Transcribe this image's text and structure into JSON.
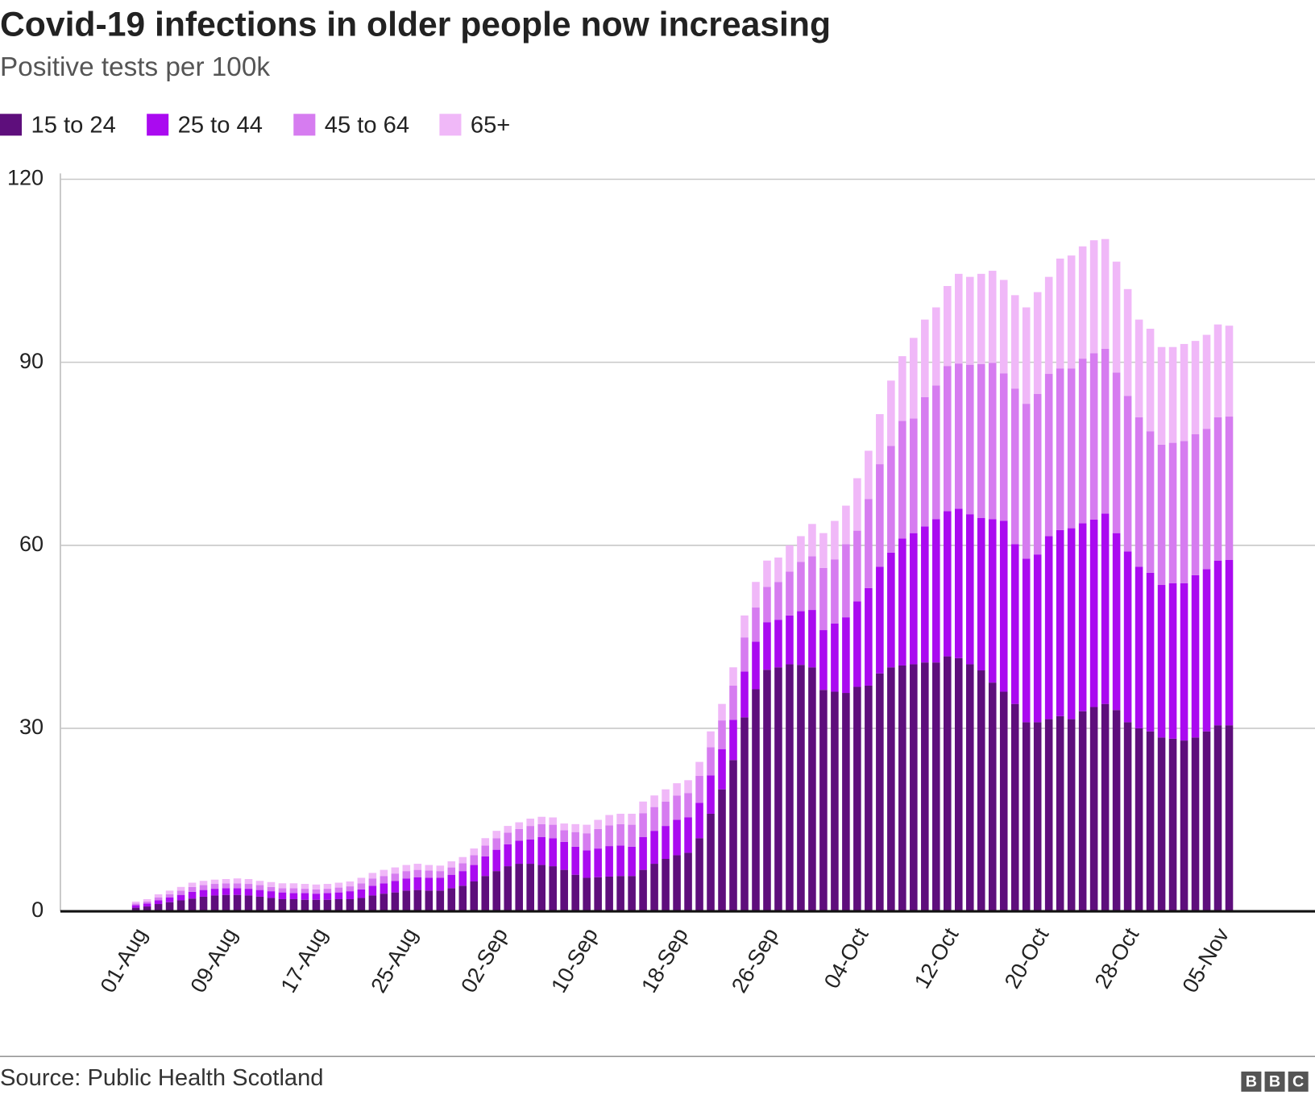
{
  "chart_data": {
    "type": "stacked-bar",
    "title": "Covid-19 infections in older people now increasing",
    "subtitle": "Positive tests per 100k",
    "source": "Source: Public Health Scotland",
    "logo": "BBC",
    "categories": [
      "01-Aug",
      null,
      null,
      null,
      null,
      null,
      null,
      null,
      "09-Aug",
      null,
      null,
      null,
      null,
      null,
      null,
      null,
      "17-Aug",
      null,
      null,
      null,
      null,
      null,
      null,
      null,
      "25-Aug",
      null,
      null,
      null,
      null,
      null,
      null,
      null,
      "02-Sep",
      null,
      null,
      null,
      null,
      null,
      null,
      null,
      "10-Sep",
      null,
      null,
      null,
      null,
      null,
      null,
      null,
      "18-Sep",
      null,
      null,
      null,
      null,
      null,
      null,
      null,
      "26-Sep",
      null,
      null,
      null,
      null,
      null,
      null,
      null,
      "04-Oct",
      null,
      null,
      null,
      null,
      null,
      null,
      null,
      "12-Oct",
      null,
      null,
      null,
      null,
      null,
      null,
      null,
      "20-Oct",
      null,
      null,
      null,
      null,
      null,
      null,
      null,
      "28-Oct",
      null,
      null,
      null,
      null,
      null,
      null,
      null,
      "05-Nov",
      null
    ],
    "series": [
      {
        "name": "15 to 24",
        "color": "#5e0e7c",
        "values": [
          0.6,
          0.8,
          1.2,
          1.5,
          1.8,
          2.1,
          2.4,
          2.6,
          2.7,
          2.7,
          2.6,
          2.4,
          2.2,
          2.0,
          2.0,
          1.9,
          1.9,
          1.9,
          2.0,
          2.0,
          2.2,
          2.6,
          2.9,
          3.1,
          3.4,
          3.5,
          3.4,
          3.4,
          3.8,
          4.2,
          4.9,
          5.8,
          6.6,
          7.4,
          7.8,
          7.8,
          7.6,
          7.4,
          6.8,
          6.0,
          5.5,
          5.6,
          5.7,
          5.8,
          5.8,
          6.8,
          7.8,
          8.6,
          9.2,
          9.6,
          12.0,
          16.0,
          20.0,
          24.8,
          31.8,
          36.4,
          39.6,
          40.0,
          40.5,
          40.4,
          40.0,
          36.3,
          36.0,
          35.8,
          36.8,
          37.0,
          39.0,
          40.0,
          40.3,
          40.5,
          40.8,
          40.8,
          41.8,
          41.5,
          40.5,
          39.5,
          37.5,
          36.0,
          34.0,
          31.0,
          31.0,
          31.5,
          32.0,
          31.5,
          32.8,
          33.5,
          34.0,
          33.0,
          31.0,
          30.0,
          29.5,
          28.5,
          28.3,
          28.0,
          28.5,
          29.5,
          30.5,
          30.5
        ]
      },
      {
        "name": "25 to 44",
        "color": "#aa0af0",
        "values": [
          0.4,
          0.5,
          0.6,
          0.8,
          0.9,
          1.1,
          1.1,
          1.1,
          1.1,
          1.1,
          1.1,
          1.1,
          1.1,
          1.1,
          1.0,
          1.1,
          1.0,
          1.1,
          1.1,
          1.3,
          1.4,
          1.6,
          1.7,
          1.9,
          2.0,
          2.1,
          2.1,
          2.1,
          2.2,
          2.4,
          2.7,
          3.2,
          3.5,
          3.6,
          3.8,
          4.0,
          4.6,
          4.6,
          4.6,
          4.6,
          4.5,
          4.7,
          5.0,
          5.0,
          4.8,
          5.4,
          5.4,
          5.4,
          5.8,
          5.8,
          5.8,
          6.3,
          6.6,
          6.6,
          7.5,
          7.8,
          7.8,
          7.8,
          8.0,
          8.8,
          9.4,
          9.8,
          11.2,
          12.4,
          14.0,
          16.0,
          17.5,
          18.8,
          20.8,
          21.5,
          22.3,
          23.5,
          23.8,
          24.5,
          24.6,
          25.0,
          26.8,
          28.0,
          26.2,
          26.8,
          27.5,
          30.0,
          30.5,
          31.3,
          30.8,
          30.7,
          31.2,
          29.0,
          28.0,
          26.5,
          26.0,
          25.0,
          25.5,
          25.8,
          26.6,
          26.6,
          27.0,
          27.1
        ]
      },
      {
        "name": "45 to 64",
        "color": "#d67cf0",
        "values": [
          0.3,
          0.3,
          0.5,
          0.5,
          0.7,
          0.8,
          0.8,
          0.8,
          0.8,
          0.8,
          0.8,
          0.8,
          0.7,
          0.7,
          0.8,
          0.7,
          0.7,
          0.7,
          0.8,
          0.8,
          1.0,
          1.2,
          1.2,
          1.2,
          1.2,
          1.2,
          1.2,
          1.1,
          1.2,
          1.3,
          1.6,
          1.8,
          1.9,
          1.9,
          1.9,
          2.2,
          2.1,
          2.2,
          1.9,
          2.4,
          2.8,
          3.2,
          3.4,
          3.5,
          3.6,
          3.9,
          3.9,
          4.0,
          4.0,
          4.0,
          4.4,
          4.6,
          4.7,
          5.6,
          5.6,
          5.6,
          5.8,
          6.2,
          7.2,
          8.1,
          8.8,
          10.2,
          10.5,
          12.0,
          11.6,
          14.6,
          16.8,
          17.5,
          19.3,
          18.8,
          21.2,
          21.9,
          23.8,
          23.8,
          24.5,
          25.2,
          25.6,
          24.2,
          25.5,
          25.4,
          26.3,
          26.6,
          26.5,
          26.2,
          27.0,
          27.3,
          27.0,
          26.3,
          25.5,
          24.5,
          23.2,
          23.0,
          23.0,
          23.3,
          23.1,
          23.0,
          23.5,
          23.5
        ]
      },
      {
        "name": "65+",
        "color": "#f0b8f8",
        "values": [
          0.3,
          0.4,
          0.5,
          0.6,
          0.6,
          0.7,
          0.7,
          0.7,
          0.7,
          0.8,
          0.8,
          0.7,
          0.8,
          0.8,
          0.8,
          0.8,
          0.8,
          0.8,
          0.8,
          0.8,
          0.9,
          0.9,
          1.0,
          1.0,
          1.0,
          1.0,
          0.9,
          0.9,
          1.0,
          1.0,
          1.1,
          1.2,
          1.2,
          1.1,
          1.1,
          1.2,
          1.2,
          1.2,
          1.1,
          1.3,
          1.4,
          1.5,
          1.7,
          1.7,
          1.8,
          1.9,
          1.9,
          2.0,
          2.0,
          2.1,
          2.3,
          2.6,
          2.7,
          3.0,
          3.6,
          4.2,
          4.3,
          4.0,
          4.3,
          4.2,
          5.3,
          5.7,
          6.3,
          6.3,
          8.6,
          7.9,
          8.2,
          10.7,
          10.6,
          13.2,
          12.7,
          12.8,
          13.1,
          14.7,
          14.4,
          14.8,
          15.1,
          15.3,
          15.3,
          15.8,
          16.7,
          15.9,
          18.0,
          18.5,
          18.4,
          18.5,
          18.0,
          18.2,
          17.5,
          16.0,
          16.8,
          16.0,
          15.7,
          15.9,
          15.3,
          15.4,
          15.2,
          14.9
        ]
      }
    ],
    "ylim": [
      0,
      120
    ],
    "yticks": [
      0,
      30,
      60,
      90,
      120
    ],
    "grid": true,
    "legend": "top"
  }
}
